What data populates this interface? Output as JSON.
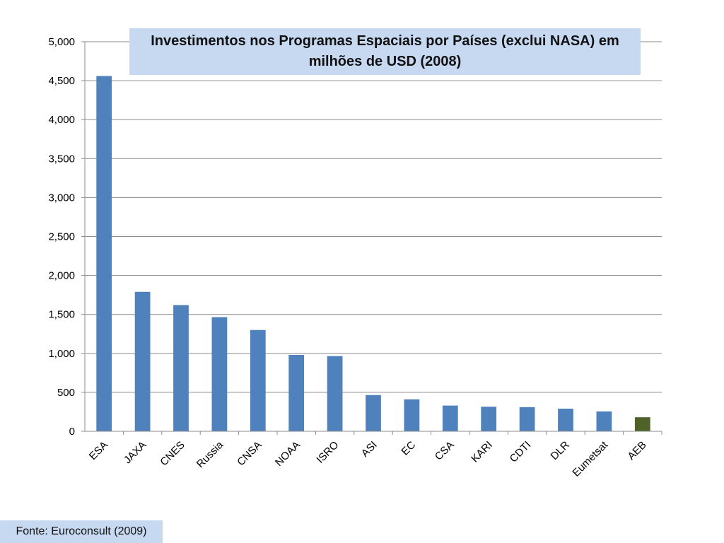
{
  "chart_data": {
    "type": "bar",
    "title": "Investimentos nos Programas Espaciais por Países (exclui NASA) em milhões de USD (2008)",
    "xlabel": "",
    "ylabel": "",
    "ylim": [
      0,
      5000
    ],
    "yticks": [
      0,
      500,
      1000,
      1500,
      2000,
      2500,
      3000,
      3500,
      4000,
      4500,
      5000
    ],
    "ytick_labels": [
      "0",
      "500",
      "1,000",
      "1,500",
      "2,000",
      "2,500",
      "3,000",
      "3,500",
      "4,000",
      "4,500",
      "5,000"
    ],
    "categories": [
      "ESA",
      "JAXA",
      "CNES",
      "Russia",
      "CNSA",
      "NOAA",
      "ISRO",
      "ASI",
      "EC",
      "CSA",
      "KARI",
      "CDTI",
      "DLR",
      "Eumetsat",
      "AEB"
    ],
    "values": [
      4560,
      1790,
      1620,
      1465,
      1300,
      980,
      965,
      465,
      410,
      330,
      315,
      310,
      290,
      255,
      180
    ],
    "bar_colors": [
      "#4f81bd",
      "#4f81bd",
      "#4f81bd",
      "#4f81bd",
      "#4f81bd",
      "#4f81bd",
      "#4f81bd",
      "#4f81bd",
      "#4f81bd",
      "#4f81bd",
      "#4f81bd",
      "#4f81bd",
      "#4f81bd",
      "#4f81bd",
      "#4f6228"
    ],
    "grid": true,
    "legend": "none"
  },
  "source": "Fonte: Euroconsult (2009)"
}
